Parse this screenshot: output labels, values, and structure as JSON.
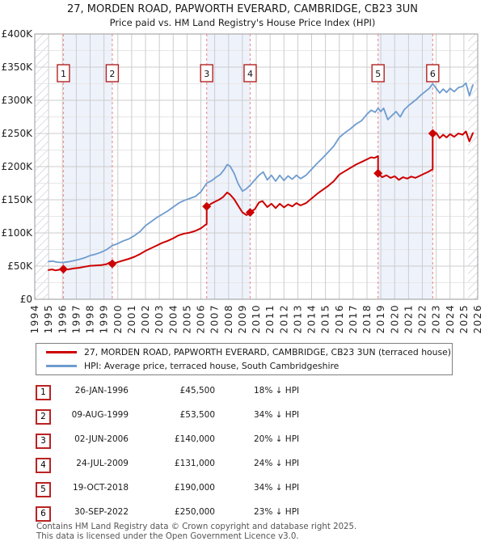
{
  "title": "27, MORDEN ROAD, PAPWORTH EVERARD, CAMBRIDGE, CB23 3UN",
  "subtitle": "Price paid vs. HM Land Registry's House Price Index (HPI)",
  "legend": [
    {
      "label": "27, MORDEN ROAD, PAPWORTH EVERARD, CAMBRIDGE, CB23 3UN (terraced house)",
      "color": "#cc0000"
    },
    {
      "label": "HPI: Average price, terraced house, South Cambridgeshire",
      "color": "#6e9ccf"
    }
  ],
  "chart_data": {
    "type": "line",
    "x_axis": {
      "range": [
        1994,
        2026
      ],
      "ticks": [
        1994,
        1995,
        1996,
        1997,
        1998,
        1999,
        2000,
        2001,
        2002,
        2003,
        2004,
        2005,
        2006,
        2007,
        2008,
        2009,
        2010,
        2011,
        2012,
        2013,
        2014,
        2015,
        2016,
        2017,
        2018,
        2019,
        2020,
        2021,
        2022,
        2023,
        2024,
        2025,
        2026
      ]
    },
    "y_axis": {
      "range_k": [
        0,
        400
      ],
      "major_step_k": 50,
      "minor_step_k": 25,
      "tick_labels": [
        "£0",
        "£50K",
        "£100K",
        "£150K",
        "£200K",
        "£250K",
        "£300K",
        "£350K",
        "£400K"
      ]
    },
    "grid": true,
    "legend_position": "bottom",
    "colors": {
      "property": "#cc0000",
      "hpi": "#6e9ccf",
      "sale_line": "#ee9595",
      "band": "#eef2fb",
      "badge_border": "#b22222",
      "grid_major": "#cccccc",
      "grid_minor": "#e7e7e7",
      "border": "#9a9a9a",
      "hatch": "#c3c8d2"
    },
    "shaded_periods": [
      [
        1996.07,
        1999.6
      ],
      [
        2006.42,
        2009.56
      ],
      [
        2018.8,
        2022.75
      ]
    ],
    "hatched_ranges": [
      [
        1994,
        1995.0
      ],
      [
        2025.3,
        2026
      ]
    ],
    "sales": [
      {
        "n": "1",
        "date": "26-JAN-1996",
        "price": "£45,500",
        "vs_hpi": "18% ↓ HPI",
        "year": 1996.07,
        "price_k": 45.5
      },
      {
        "n": "2",
        "date": "09-AUG-1999",
        "price": "£53,500",
        "vs_hpi": "34% ↓ HPI",
        "year": 1999.6,
        "price_k": 53.5
      },
      {
        "n": "3",
        "date": "02-JUN-2006",
        "price": "£140,000",
        "vs_hpi": "20% ↓ HPI",
        "year": 2006.42,
        "price_k": 140
      },
      {
        "n": "4",
        "date": "24-JUL-2009",
        "price": "£131,000",
        "vs_hpi": "24% ↓ HPI",
        "year": 2009.56,
        "price_k": 131
      },
      {
        "n": "5",
        "date": "19-OCT-2018",
        "price": "£190,000",
        "vs_hpi": "34% ↓ HPI",
        "year": 2018.8,
        "price_k": 190
      },
      {
        "n": "6",
        "date": "30-SEP-2022",
        "price": "£250,000",
        "vs_hpi": "23% ↓ HPI",
        "year": 2022.75,
        "price_k": 250
      }
    ],
    "series": [
      {
        "name": "property_price",
        "color": "#cc0000",
        "width": 2,
        "points": [
          [
            1995.0,
            44
          ],
          [
            1995.25,
            45
          ],
          [
            1995.5,
            43.5
          ],
          [
            1995.75,
            44.5
          ],
          [
            1996.07,
            45.5
          ],
          [
            1996.4,
            45
          ],
          [
            1996.8,
            46.5
          ],
          [
            1997.2,
            47.5
          ],
          [
            1997.6,
            49
          ],
          [
            1998.0,
            50.5
          ],
          [
            1998.4,
            51
          ],
          [
            1998.8,
            51.5
          ],
          [
            1999.2,
            53
          ],
          [
            1999.5,
            56.5
          ],
          [
            1999.6,
            53.5
          ],
          [
            2000.0,
            56
          ],
          [
            2000.4,
            58.5
          ],
          [
            2000.8,
            61
          ],
          [
            2001.2,
            64
          ],
          [
            2001.6,
            68
          ],
          [
            2002.0,
            73
          ],
          [
            2002.4,
            77
          ],
          [
            2002.8,
            81
          ],
          [
            2003.2,
            85
          ],
          [
            2003.6,
            88
          ],
          [
            2004.0,
            92
          ],
          [
            2004.4,
            96.5
          ],
          [
            2004.8,
            99
          ],
          [
            2005.2,
            100.5
          ],
          [
            2005.6,
            103
          ],
          [
            2006.0,
            107
          ],
          [
            2006.25,
            111
          ],
          [
            2006.42,
            113.5
          ],
          [
            2006.42,
            140
          ],
          [
            2006.7,
            143.5
          ],
          [
            2007.0,
            147
          ],
          [
            2007.3,
            150
          ],
          [
            2007.6,
            154
          ],
          [
            2007.9,
            161
          ],
          [
            2008.1,
            158
          ],
          [
            2008.4,
            151
          ],
          [
            2008.7,
            141
          ],
          [
            2009.0,
            131
          ],
          [
            2009.3,
            127
          ],
          [
            2009.56,
            131
          ],
          [
            2009.9,
            136
          ],
          [
            2010.2,
            146
          ],
          [
            2010.45,
            148
          ],
          [
            2010.8,
            139
          ],
          [
            2011.1,
            144
          ],
          [
            2011.4,
            137.5
          ],
          [
            2011.7,
            144
          ],
          [
            2012.0,
            138.5
          ],
          [
            2012.3,
            143
          ],
          [
            2012.6,
            140
          ],
          [
            2012.9,
            145
          ],
          [
            2013.2,
            141.5
          ],
          [
            2013.6,
            145
          ],
          [
            2014.0,
            152
          ],
          [
            2014.4,
            159
          ],
          [
            2014.8,
            165
          ],
          [
            2015.2,
            171
          ],
          [
            2015.6,
            178
          ],
          [
            2016.0,
            188
          ],
          [
            2016.4,
            193
          ],
          [
            2016.8,
            198
          ],
          [
            2017.2,
            203
          ],
          [
            2017.6,
            207
          ],
          [
            2018.0,
            211
          ],
          [
            2018.3,
            214
          ],
          [
            2018.55,
            213
          ],
          [
            2018.8,
            216
          ],
          [
            2018.8,
            190
          ],
          [
            2019.1,
            184
          ],
          [
            2019.4,
            187
          ],
          [
            2019.7,
            183
          ],
          [
            2020.0,
            185.5
          ],
          [
            2020.3,
            180
          ],
          [
            2020.6,
            184
          ],
          [
            2020.9,
            182
          ],
          [
            2021.2,
            185
          ],
          [
            2021.5,
            183
          ],
          [
            2021.8,
            186
          ],
          [
            2022.1,
            189
          ],
          [
            2022.4,
            192
          ],
          [
            2022.75,
            196
          ],
          [
            2022.75,
            250
          ],
          [
            2023.0,
            251
          ],
          [
            2023.25,
            243
          ],
          [
            2023.5,
            248
          ],
          [
            2023.75,
            244
          ],
          [
            2024.0,
            249
          ],
          [
            2024.3,
            245
          ],
          [
            2024.6,
            250
          ],
          [
            2024.9,
            248
          ],
          [
            2025.15,
            253
          ],
          [
            2025.4,
            238
          ],
          [
            2025.65,
            250.5
          ]
        ]
      },
      {
        "name": "hpi_average",
        "color": "#6e9ccf",
        "width": 1.8,
        "points": [
          [
            1995.0,
            57
          ],
          [
            1995.3,
            57.5
          ],
          [
            1995.6,
            56
          ],
          [
            1995.9,
            55.5
          ],
          [
            1996.07,
            55.5
          ],
          [
            1996.4,
            56.5
          ],
          [
            1996.8,
            58
          ],
          [
            1997.2,
            60
          ],
          [
            1997.6,
            62.5
          ],
          [
            1998.0,
            66
          ],
          [
            1998.4,
            68
          ],
          [
            1998.8,
            71
          ],
          [
            1999.2,
            75
          ],
          [
            1999.6,
            81
          ],
          [
            2000.0,
            84
          ],
          [
            2000.4,
            88
          ],
          [
            2000.8,
            91
          ],
          [
            2001.2,
            96
          ],
          [
            2001.6,
            102
          ],
          [
            2002.0,
            111
          ],
          [
            2002.4,
            117
          ],
          [
            2002.8,
            123
          ],
          [
            2003.2,
            128
          ],
          [
            2003.6,
            133
          ],
          [
            2004.0,
            139
          ],
          [
            2004.4,
            145
          ],
          [
            2004.8,
            149
          ],
          [
            2005.2,
            152
          ],
          [
            2005.6,
            155
          ],
          [
            2006.0,
            162
          ],
          [
            2006.42,
            175
          ],
          [
            2006.8,
            179
          ],
          [
            2007.1,
            184
          ],
          [
            2007.4,
            188
          ],
          [
            2007.7,
            196
          ],
          [
            2007.9,
            203
          ],
          [
            2008.1,
            201
          ],
          [
            2008.4,
            190
          ],
          [
            2008.7,
            174
          ],
          [
            2009.0,
            163
          ],
          [
            2009.25,
            166
          ],
          [
            2009.56,
            172
          ],
          [
            2009.9,
            180
          ],
          [
            2010.2,
            187
          ],
          [
            2010.5,
            192
          ],
          [
            2010.8,
            180
          ],
          [
            2011.1,
            187
          ],
          [
            2011.4,
            178
          ],
          [
            2011.7,
            187
          ],
          [
            2012.0,
            179
          ],
          [
            2012.3,
            186
          ],
          [
            2012.6,
            181
          ],
          [
            2012.9,
            187
          ],
          [
            2013.2,
            182
          ],
          [
            2013.6,
            187
          ],
          [
            2014.0,
            196
          ],
          [
            2014.4,
            205
          ],
          [
            2014.8,
            213
          ],
          [
            2015.2,
            222
          ],
          [
            2015.6,
            231
          ],
          [
            2016.0,
            244
          ],
          [
            2016.4,
            251
          ],
          [
            2016.8,
            257
          ],
          [
            2017.2,
            264
          ],
          [
            2017.6,
            269
          ],
          [
            2018.0,
            279
          ],
          [
            2018.3,
            285
          ],
          [
            2018.6,
            282
          ],
          [
            2018.8,
            288
          ],
          [
            2019.0,
            283
          ],
          [
            2019.2,
            288
          ],
          [
            2019.5,
            271
          ],
          [
            2019.8,
            277
          ],
          [
            2020.1,
            283
          ],
          [
            2020.4,
            275
          ],
          [
            2020.7,
            286
          ],
          [
            2021.0,
            292
          ],
          [
            2021.3,
            297
          ],
          [
            2021.6,
            302
          ],
          [
            2021.9,
            308
          ],
          [
            2022.2,
            313
          ],
          [
            2022.5,
            318
          ],
          [
            2022.75,
            325
          ],
          [
            2023.0,
            318
          ],
          [
            2023.25,
            311
          ],
          [
            2023.5,
            317
          ],
          [
            2023.75,
            312
          ],
          [
            2024.0,
            318
          ],
          [
            2024.3,
            313
          ],
          [
            2024.6,
            319
          ],
          [
            2024.9,
            321
          ],
          [
            2025.15,
            326
          ],
          [
            2025.4,
            307
          ],
          [
            2025.65,
            323
          ]
        ]
      }
    ]
  },
  "footer": {
    "line1": "Contains HM Land Registry data © Crown copyright and database right 2025.",
    "line2": "This data is licensed under the Open Government Licence v3.0."
  }
}
